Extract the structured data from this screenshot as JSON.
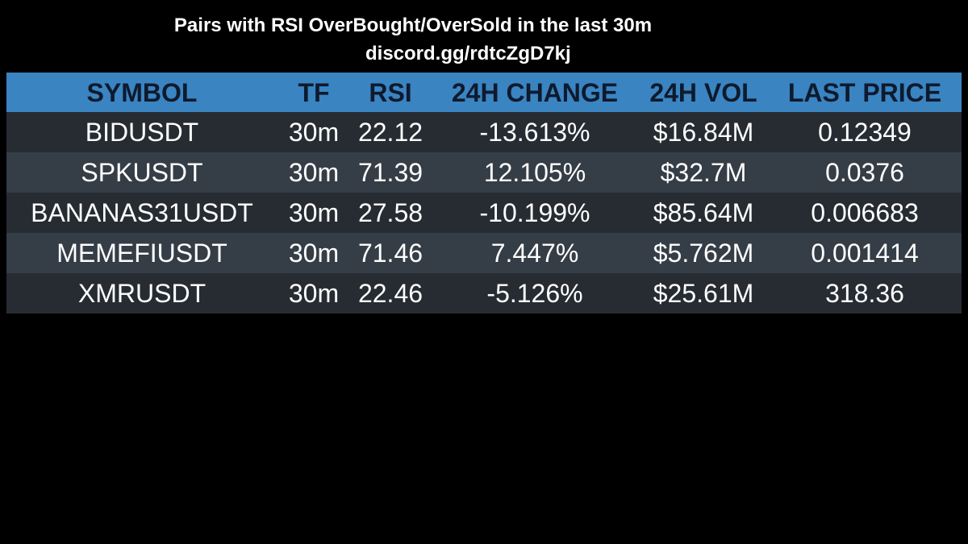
{
  "header": {
    "title": "Pairs with RSI OverBought/OverSold in the last 30m",
    "link": "discord.gg/rdtcZgD7kj"
  },
  "table": {
    "columns": [
      "SYMBOL",
      "TF",
      "RSI",
      "24H CHANGE",
      "24H VOL",
      "LAST PRICE"
    ],
    "rows": [
      {
        "symbol": "BIDUSDT",
        "tf": "30m",
        "rsi": "22.12",
        "change": "-13.613%",
        "vol": "$16.84M",
        "price": "0.12349"
      },
      {
        "symbol": "SPKUSDT",
        "tf": "30m",
        "rsi": "71.39",
        "change": "12.105%",
        "vol": "$32.7M",
        "price": "0.0376"
      },
      {
        "symbol": "BANANAS31USDT",
        "tf": "30m",
        "rsi": "27.58",
        "change": "-10.199%",
        "vol": "$85.64M",
        "price": "0.006683"
      },
      {
        "symbol": "MEMEFIUSDT",
        "tf": "30m",
        "rsi": "71.46",
        "change": "7.447%",
        "vol": "$5.762M",
        "price": "0.001414"
      },
      {
        "symbol": "XMRUSDT",
        "tf": "30m",
        "rsi": "22.46",
        "change": "-5.126%",
        "vol": "$25.61M",
        "price": "318.36"
      }
    ]
  },
  "colors": {
    "background": "#000000",
    "header_bg": "#3a84c1",
    "row_dark": "#262c32",
    "row_light": "#353d46",
    "header_text": "#0e1a2e"
  }
}
